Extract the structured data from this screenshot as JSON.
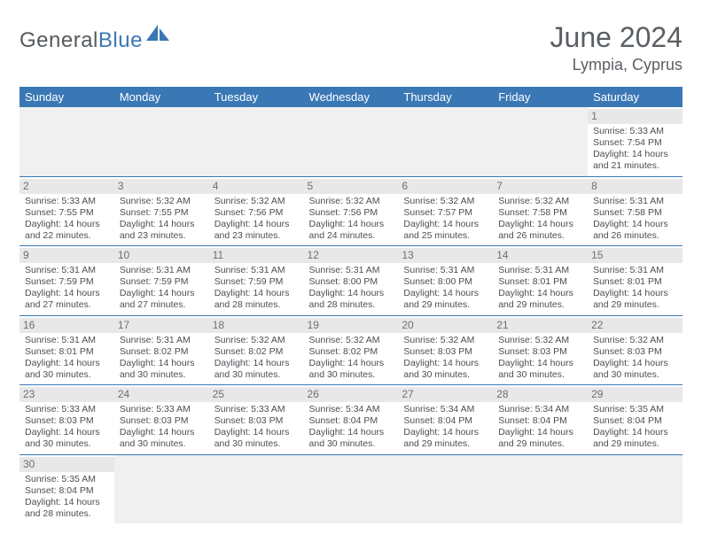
{
  "brand": {
    "word1": "General",
    "word2": "Blue"
  },
  "title": "June 2024",
  "location": "Lympia, Cyprus",
  "colors": {
    "header_bg": "#3a78b5",
    "header_fg": "#ffffff",
    "daynum_bg": "#e8e8e8",
    "text": "#4a4f54",
    "rule": "#3a78b5"
  },
  "weekdays": [
    "Sunday",
    "Monday",
    "Tuesday",
    "Wednesday",
    "Thursday",
    "Friday",
    "Saturday"
  ],
  "weeks": [
    [
      null,
      null,
      null,
      null,
      null,
      null,
      {
        "n": "1",
        "sr": "Sunrise: 5:33 AM",
        "ss": "Sunset: 7:54 PM",
        "d1": "Daylight: 14 hours",
        "d2": "and 21 minutes."
      }
    ],
    [
      {
        "n": "2",
        "sr": "Sunrise: 5:33 AM",
        "ss": "Sunset: 7:55 PM",
        "d1": "Daylight: 14 hours",
        "d2": "and 22 minutes."
      },
      {
        "n": "3",
        "sr": "Sunrise: 5:32 AM",
        "ss": "Sunset: 7:55 PM",
        "d1": "Daylight: 14 hours",
        "d2": "and 23 minutes."
      },
      {
        "n": "4",
        "sr": "Sunrise: 5:32 AM",
        "ss": "Sunset: 7:56 PM",
        "d1": "Daylight: 14 hours",
        "d2": "and 23 minutes."
      },
      {
        "n": "5",
        "sr": "Sunrise: 5:32 AM",
        "ss": "Sunset: 7:56 PM",
        "d1": "Daylight: 14 hours",
        "d2": "and 24 minutes."
      },
      {
        "n": "6",
        "sr": "Sunrise: 5:32 AM",
        "ss": "Sunset: 7:57 PM",
        "d1": "Daylight: 14 hours",
        "d2": "and 25 minutes."
      },
      {
        "n": "7",
        "sr": "Sunrise: 5:32 AM",
        "ss": "Sunset: 7:58 PM",
        "d1": "Daylight: 14 hours",
        "d2": "and 26 minutes."
      },
      {
        "n": "8",
        "sr": "Sunrise: 5:31 AM",
        "ss": "Sunset: 7:58 PM",
        "d1": "Daylight: 14 hours",
        "d2": "and 26 minutes."
      }
    ],
    [
      {
        "n": "9",
        "sr": "Sunrise: 5:31 AM",
        "ss": "Sunset: 7:59 PM",
        "d1": "Daylight: 14 hours",
        "d2": "and 27 minutes."
      },
      {
        "n": "10",
        "sr": "Sunrise: 5:31 AM",
        "ss": "Sunset: 7:59 PM",
        "d1": "Daylight: 14 hours",
        "d2": "and 27 minutes."
      },
      {
        "n": "11",
        "sr": "Sunrise: 5:31 AM",
        "ss": "Sunset: 7:59 PM",
        "d1": "Daylight: 14 hours",
        "d2": "and 28 minutes."
      },
      {
        "n": "12",
        "sr": "Sunrise: 5:31 AM",
        "ss": "Sunset: 8:00 PM",
        "d1": "Daylight: 14 hours",
        "d2": "and 28 minutes."
      },
      {
        "n": "13",
        "sr": "Sunrise: 5:31 AM",
        "ss": "Sunset: 8:00 PM",
        "d1": "Daylight: 14 hours",
        "d2": "and 29 minutes."
      },
      {
        "n": "14",
        "sr": "Sunrise: 5:31 AM",
        "ss": "Sunset: 8:01 PM",
        "d1": "Daylight: 14 hours",
        "d2": "and 29 minutes."
      },
      {
        "n": "15",
        "sr": "Sunrise: 5:31 AM",
        "ss": "Sunset: 8:01 PM",
        "d1": "Daylight: 14 hours",
        "d2": "and 29 minutes."
      }
    ],
    [
      {
        "n": "16",
        "sr": "Sunrise: 5:31 AM",
        "ss": "Sunset: 8:01 PM",
        "d1": "Daylight: 14 hours",
        "d2": "and 30 minutes."
      },
      {
        "n": "17",
        "sr": "Sunrise: 5:31 AM",
        "ss": "Sunset: 8:02 PM",
        "d1": "Daylight: 14 hours",
        "d2": "and 30 minutes."
      },
      {
        "n": "18",
        "sr": "Sunrise: 5:32 AM",
        "ss": "Sunset: 8:02 PM",
        "d1": "Daylight: 14 hours",
        "d2": "and 30 minutes."
      },
      {
        "n": "19",
        "sr": "Sunrise: 5:32 AM",
        "ss": "Sunset: 8:02 PM",
        "d1": "Daylight: 14 hours",
        "d2": "and 30 minutes."
      },
      {
        "n": "20",
        "sr": "Sunrise: 5:32 AM",
        "ss": "Sunset: 8:03 PM",
        "d1": "Daylight: 14 hours",
        "d2": "and 30 minutes."
      },
      {
        "n": "21",
        "sr": "Sunrise: 5:32 AM",
        "ss": "Sunset: 8:03 PM",
        "d1": "Daylight: 14 hours",
        "d2": "and 30 minutes."
      },
      {
        "n": "22",
        "sr": "Sunrise: 5:32 AM",
        "ss": "Sunset: 8:03 PM",
        "d1": "Daylight: 14 hours",
        "d2": "and 30 minutes."
      }
    ],
    [
      {
        "n": "23",
        "sr": "Sunrise: 5:33 AM",
        "ss": "Sunset: 8:03 PM",
        "d1": "Daylight: 14 hours",
        "d2": "and 30 minutes."
      },
      {
        "n": "24",
        "sr": "Sunrise: 5:33 AM",
        "ss": "Sunset: 8:03 PM",
        "d1": "Daylight: 14 hours",
        "d2": "and 30 minutes."
      },
      {
        "n": "25",
        "sr": "Sunrise: 5:33 AM",
        "ss": "Sunset: 8:03 PM",
        "d1": "Daylight: 14 hours",
        "d2": "and 30 minutes."
      },
      {
        "n": "26",
        "sr": "Sunrise: 5:34 AM",
        "ss": "Sunset: 8:04 PM",
        "d1": "Daylight: 14 hours",
        "d2": "and 30 minutes."
      },
      {
        "n": "27",
        "sr": "Sunrise: 5:34 AM",
        "ss": "Sunset: 8:04 PM",
        "d1": "Daylight: 14 hours",
        "d2": "and 29 minutes."
      },
      {
        "n": "28",
        "sr": "Sunrise: 5:34 AM",
        "ss": "Sunset: 8:04 PM",
        "d1": "Daylight: 14 hours",
        "d2": "and 29 minutes."
      },
      {
        "n": "29",
        "sr": "Sunrise: 5:35 AM",
        "ss": "Sunset: 8:04 PM",
        "d1": "Daylight: 14 hours",
        "d2": "and 29 minutes."
      }
    ],
    [
      {
        "n": "30",
        "sr": "Sunrise: 5:35 AM",
        "ss": "Sunset: 8:04 PM",
        "d1": "Daylight: 14 hours",
        "d2": "and 28 minutes."
      },
      null,
      null,
      null,
      null,
      null,
      null
    ]
  ]
}
